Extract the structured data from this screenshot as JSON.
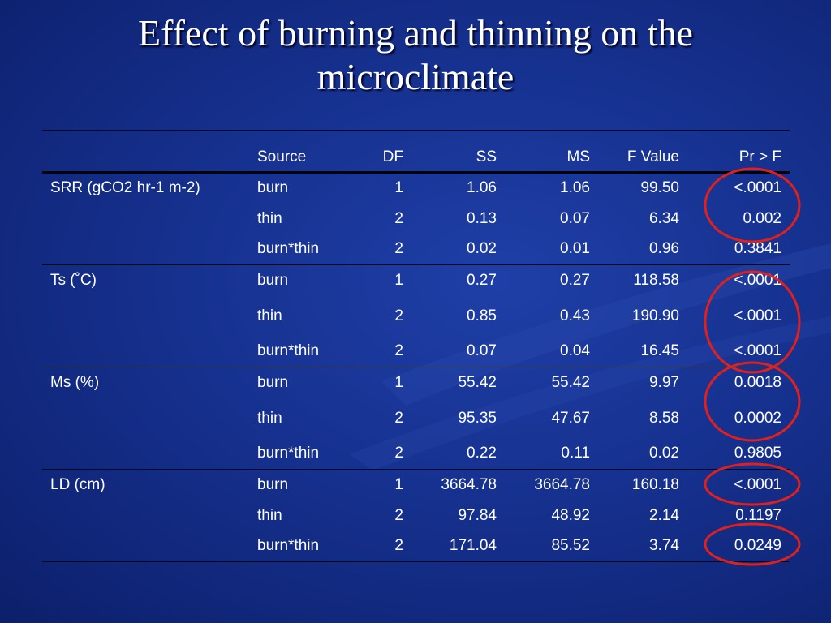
{
  "slide": {
    "title_line1": "Effect of burning and thinning on the",
    "title_line2": "microclimate"
  },
  "table": {
    "headers": [
      "",
      "Source",
      "DF",
      "SS",
      "MS",
      "F Value",
      "Pr > F"
    ],
    "groups": [
      {
        "label": "SRR (gCO2 hr-1 m-2)",
        "rows": [
          [
            "burn",
            "1",
            "1.06",
            "1.06",
            "99.50",
            "<.0001"
          ],
          [
            "thin",
            "2",
            "0.13",
            "0.07",
            "6.34",
            "0.002"
          ],
          [
            "burn*thin",
            "2",
            "0.02",
            "0.01",
            "0.96",
            "0.3841"
          ]
        ]
      },
      {
        "label": "Ts (˚C)",
        "rows": [
          [
            "burn",
            "1",
            "0.27",
            "0.27",
            "118.58",
            "<.0001"
          ],
          [
            "thin",
            "2",
            "0.85",
            "0.43",
            "190.90",
            "<.0001"
          ],
          [
            "burn*thin",
            "2",
            "0.07",
            "0.04",
            "16.45",
            "<.0001"
          ]
        ]
      },
      {
        "label": "Ms (%)",
        "rows": [
          [
            "burn",
            "1",
            "55.42",
            "55.42",
            "9.97",
            "0.0018"
          ],
          [
            "thin",
            "2",
            "95.35",
            "47.67",
            "8.58",
            "0.0002"
          ],
          [
            "burn*thin",
            "2",
            "0.22",
            "0.11",
            "0.02",
            "0.9805"
          ]
        ]
      },
      {
        "label": "LD (cm)",
        "rows": [
          [
            "burn",
            "1",
            "3664.78",
            "3664.78",
            "160.18",
            "<.0001"
          ],
          [
            "thin",
            "2",
            "97.84",
            "48.92",
            "2.14",
            "0.1197"
          ],
          [
            "burn*thin",
            "2",
            "171.04",
            "85.52",
            "3.74",
            "0.0249"
          ]
        ]
      }
    ]
  },
  "colors": {
    "background": "#16318f",
    "text": "#ffffff",
    "annotation_circle": "#e0201c"
  }
}
